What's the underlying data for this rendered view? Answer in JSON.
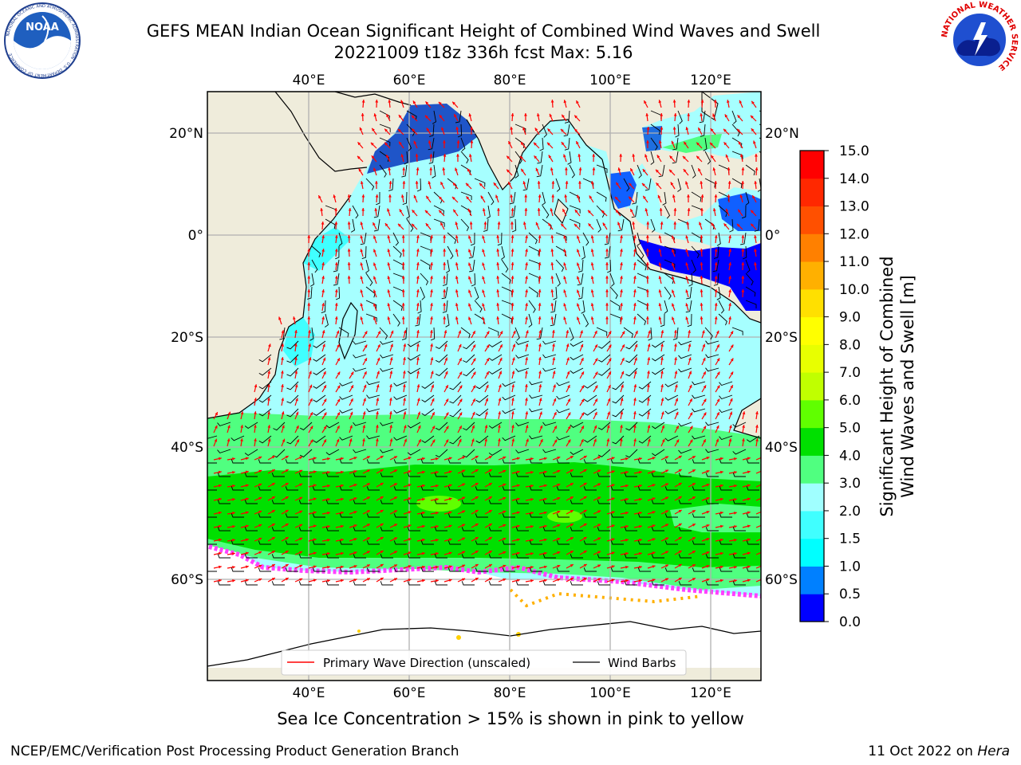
{
  "header": {
    "title_line1": "GEFS MEAN Indian Ocean Significant Height of Combined Wind Waves and Swell",
    "title_line2": "20221009 t18z 336h fcst   Max: 5.16"
  },
  "logos": {
    "left": {
      "name": "noaa-logo",
      "text": "NOAA",
      "ring_text": "NATIONAL OCEANIC AND ATMOSPHERIC ADMINISTRATION · U.S. DEPARTMENT OF COMMERCE"
    },
    "right": {
      "name": "nws-logo",
      "ring_text": "NATIONAL WEATHER SERVICE"
    }
  },
  "map": {
    "lon_ticks": [
      "40°E",
      "60°E",
      "80°E",
      "100°E",
      "120°E"
    ],
    "lat_ticks": [
      "20°N",
      "0°",
      "20°S",
      "40°S",
      "60°S"
    ],
    "lon_range": [
      20,
      130
    ],
    "colors": {
      "land": "#efecdb",
      "sea_ice": "#ffffff",
      "grid": "#b0b0b0",
      "wave_arrow": "#ff0000",
      "wind_barb": "#000000"
    },
    "legend": [
      {
        "label": "Primary Wave Direction (unscaled)",
        "color": "#ff0000"
      },
      {
        "label": "Wind Barbs",
        "color": "#000000"
      }
    ]
  },
  "colorbar": {
    "label_line1": "Significant Height of Combined",
    "label_line2": "Wind Waves and Swell [m]",
    "ticks": [
      "0.0",
      "0.5",
      "1.0",
      "1.5",
      "2.0",
      "3.0",
      "4.0",
      "5.0",
      "6.0",
      "7.0",
      "8.0",
      "9.0",
      "10.0",
      "11.0",
      "12.0",
      "13.0",
      "14.0",
      "15.0"
    ],
    "colors": [
      "#0000ff",
      "#0080ff",
      "#00ffff",
      "#40ffff",
      "#a0ffff",
      "#50ff80",
      "#00e000",
      "#60ff00",
      "#c0ff00",
      "#e8ff00",
      "#ffff00",
      "#ffe000",
      "#ffb000",
      "#ff8000",
      "#ff5000",
      "#ff2800",
      "#ff0000"
    ]
  },
  "footer": {
    "note": "Sea Ice Concentration > 15% is shown in pink to yellow",
    "left": "NCEP/EMC/Verification Post Processing Product Generation Branch",
    "right_prefix": "11 Oct 2022 on ",
    "right_host": "Hera"
  }
}
